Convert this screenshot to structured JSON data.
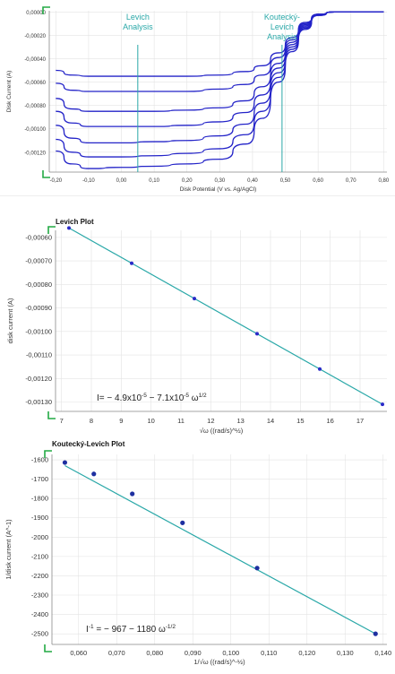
{
  "chart_data": [
    {
      "type": "line",
      "title": "",
      "xlabel": "Disk Potential (V vs. Ag/AgCl)",
      "ylabel": "Disk Current (A)",
      "xlim": [
        -0.22,
        0.81
      ],
      "ylim": [
        -0.00137,
        1e-05
      ],
      "xticks": [
        -0.2,
        -0.1,
        0.0,
        0.1,
        0.2,
        0.3,
        0.4,
        0.5,
        0.6,
        0.7,
        0.8
      ],
      "xtick_labels": [
        "-0,20",
        "-0,10",
        "0,00",
        "0,10",
        "0,20",
        "0,30",
        "0,40",
        "0,50",
        "0,60",
        "0,70",
        "0,80"
      ],
      "yticks": [
        0,
        -0.0002,
        -0.0004,
        -0.0006,
        -0.0008,
        -0.001,
        -0.0012
      ],
      "ytick_labels": [
        "0,00000",
        "-0,00020",
        "-0,00040",
        "-0,00060",
        "-0,00080",
        "-0,00100",
        "-0,00120"
      ],
      "color": "#2323c8",
      "series": [
        {
          "values": [
            [
              -0.2,
              -0.0005
            ],
            [
              -0.15,
              -0.00054
            ],
            [
              -0.1,
              -0.00055
            ],
            [
              0.0,
              -0.00055
            ],
            [
              0.1,
              -0.00055
            ],
            [
              0.2,
              -0.00055
            ],
            [
              0.3,
              -0.00054
            ],
            [
              0.38,
              -0.00051
            ],
            [
              0.43,
              -0.00046
            ],
            [
              0.48,
              -0.00035
            ],
            [
              0.52,
              -0.00022
            ],
            [
              0.56,
              -9e-05
            ],
            [
              0.6,
              -2e-05
            ],
            [
              0.65,
              0.0
            ],
            [
              0.8,
              0.0
            ]
          ]
        },
        {
          "values": [
            [
              -0.2,
              -0.00061
            ],
            [
              -0.15,
              -0.00067
            ],
            [
              -0.1,
              -0.00068
            ],
            [
              0.0,
              -0.00068
            ],
            [
              0.1,
              -0.00068
            ],
            [
              0.2,
              -0.00068
            ],
            [
              0.3,
              -0.00066
            ],
            [
              0.38,
              -0.00062
            ],
            [
              0.43,
              -0.00054
            ],
            [
              0.48,
              -0.00039
            ],
            [
              0.52,
              -0.00024
            ],
            [
              0.56,
              -0.0001
            ],
            [
              0.6,
              -2e-05
            ],
            [
              0.65,
              0.0
            ],
            [
              0.8,
              0.0
            ]
          ]
        },
        {
          "values": [
            [
              -0.2,
              -0.00074
            ],
            [
              -0.15,
              -0.00083
            ],
            [
              -0.1,
              -0.00085
            ],
            [
              0.0,
              -0.00085
            ],
            [
              0.1,
              -0.00085
            ],
            [
              0.2,
              -0.00084
            ],
            [
              0.3,
              -0.00082
            ],
            [
              0.38,
              -0.00076
            ],
            [
              0.43,
              -0.00064
            ],
            [
              0.48,
              -0.00044
            ],
            [
              0.52,
              -0.00026
            ],
            [
              0.56,
              -0.00011
            ],
            [
              0.6,
              -2e-05
            ],
            [
              0.65,
              0.0
            ],
            [
              0.8,
              0.0
            ]
          ]
        },
        {
          "values": [
            [
              -0.2,
              -0.00085
            ],
            [
              -0.15,
              -0.00095
            ],
            [
              -0.1,
              -0.00098
            ],
            [
              0.0,
              -0.00098
            ],
            [
              0.1,
              -0.00098
            ],
            [
              0.2,
              -0.00097
            ],
            [
              0.3,
              -0.00094
            ],
            [
              0.38,
              -0.00086
            ],
            [
              0.43,
              -0.00071
            ],
            [
              0.48,
              -0.00048
            ],
            [
              0.52,
              -0.00028
            ],
            [
              0.56,
              -0.00012
            ],
            [
              0.6,
              -2e-05
            ],
            [
              0.65,
              0.0
            ],
            [
              0.8,
              0.0
            ]
          ]
        },
        {
          "values": [
            [
              -0.2,
              -0.00097
            ],
            [
              -0.15,
              -0.00108
            ],
            [
              -0.1,
              -0.00112
            ],
            [
              0.0,
              -0.00112
            ],
            [
              0.1,
              -0.00111
            ],
            [
              0.2,
              -0.0011
            ],
            [
              0.3,
              -0.00106
            ],
            [
              0.38,
              -0.00096
            ],
            [
              0.43,
              -0.00078
            ],
            [
              0.48,
              -0.00052
            ],
            [
              0.52,
              -0.0003
            ],
            [
              0.56,
              -0.00013
            ],
            [
              0.6,
              -2e-05
            ],
            [
              0.65,
              0.0
            ],
            [
              0.8,
              0.0
            ]
          ]
        },
        {
          "values": [
            [
              -0.2,
              -0.00109
            ],
            [
              -0.15,
              -0.0012
            ],
            [
              -0.1,
              -0.00124
            ],
            [
              0.0,
              -0.00124
            ],
            [
              0.1,
              -0.00123
            ],
            [
              0.2,
              -0.00121
            ],
            [
              0.3,
              -0.00117
            ],
            [
              0.38,
              -0.00105
            ],
            [
              0.43,
              -0.00085
            ],
            [
              0.48,
              -0.00056
            ],
            [
              0.52,
              -0.00032
            ],
            [
              0.56,
              -0.00014
            ],
            [
              0.6,
              -3e-05
            ],
            [
              0.65,
              0.0
            ],
            [
              0.8,
              0.0
            ]
          ]
        },
        {
          "values": [
            [
              -0.2,
              -0.00119
            ],
            [
              -0.15,
              -0.0013
            ],
            [
              -0.1,
              -0.00134
            ],
            [
              0.0,
              -0.00133
            ],
            [
              0.1,
              -0.00132
            ],
            [
              0.2,
              -0.0013
            ],
            [
              0.3,
              -0.00126
            ],
            [
              0.38,
              -0.00113
            ],
            [
              0.43,
              -0.00091
            ],
            [
              0.48,
              -0.0006
            ],
            [
              0.52,
              -0.00034
            ],
            [
              0.56,
              -0.00015
            ],
            [
              0.6,
              -3e-05
            ],
            [
              0.65,
              0.0
            ],
            [
              0.8,
              0.0
            ]
          ]
        }
      ],
      "markers": [
        {
          "x": 0.05,
          "label_lines": [
            "Levich",
            "Analysis"
          ]
        },
        {
          "x": 0.49,
          "label_lines": [
            "Koutecký-",
            "Levich",
            "Analysis"
          ]
        }
      ],
      "marker_color": "#2aa8a8"
    },
    {
      "type": "scatter",
      "title": "Levich Plot",
      "xlabel": "√ω ((rad/s)^½)",
      "ylabel": "disk current (A)",
      "xlim": [
        6.8,
        17.9
      ],
      "ylim": [
        -0.00134,
        -0.00057
      ],
      "xticks": [
        7,
        8,
        9,
        10,
        11,
        12,
        13,
        14,
        15,
        16,
        17
      ],
      "xtick_labels": [
        "7",
        "8",
        "9",
        "10",
        "11",
        "12",
        "13",
        "14",
        "15",
        "16",
        "17"
      ],
      "yticks": [
        -0.0006,
        -0.0007,
        -0.0008,
        -0.0009,
        -0.001,
        -0.0011,
        -0.0012,
        -0.0013
      ],
      "ytick_labels": [
        "-0,00060",
        "-0,00070",
        "-0,00080",
        "-0,00090",
        "-0,00100",
        "-0,00110",
        "-0,00120",
        "-0,00130"
      ],
      "points": [
        [
          7.25,
          -0.00056
        ],
        [
          9.35,
          -0.00071
        ],
        [
          11.45,
          -0.00086
        ],
        [
          13.55,
          -0.00101
        ],
        [
          15.65,
          -0.00116
        ],
        [
          17.75,
          -0.00131
        ]
      ],
      "fit_line": [
        [
          7.25,
          -0.00056
        ],
        [
          17.75,
          -0.00131
        ]
      ],
      "equation": {
        "lhs": "I= − 4.9x10",
        "e1": "-5",
        "mid": " − 7.1x10",
        "e2": "-5",
        "tail": " ω",
        "e3": "1/2"
      },
      "line_color": "#2aa8a8",
      "point_color": "#2a2ac8"
    },
    {
      "type": "scatter",
      "title": "Koutecký-Levich Plot",
      "xlabel": "1/√ω ((rad/s)^-½)",
      "ylabel": "1/disk current (A^-1)",
      "xlim": [
        0.053,
        0.141
      ],
      "ylim": [
        -2555,
        -1572
      ],
      "xticks": [
        0.06,
        0.07,
        0.08,
        0.09,
        0.1,
        0.11,
        0.12,
        0.13,
        0.14
      ],
      "xtick_labels": [
        "0,060",
        "0,070",
        "0,080",
        "0,090",
        "0,100",
        "0,110",
        "0,120",
        "0,130",
        "0,140"
      ],
      "yticks": [
        -1600,
        -1700,
        -1800,
        -1900,
        -2000,
        -2100,
        -2200,
        -2300,
        -2400,
        -2500
      ],
      "ytick_labels": [
        "-1600",
        "-1700",
        "-1800",
        "-1900",
        "-2000",
        "-2100",
        "-2200",
        "-2300",
        "-2400",
        "-2500"
      ],
      "points": [
        [
          0.0564,
          -1614
        ],
        [
          0.064,
          -1673
        ],
        [
          0.0741,
          -1776
        ],
        [
          0.0873,
          -1926
        ],
        [
          0.1069,
          -2160
        ],
        [
          0.138,
          -2500
        ]
      ],
      "fit_line": [
        [
          0.0564,
          -1630
        ],
        [
          0.138,
          -2500
        ]
      ],
      "equation": {
        "lhs": "I",
        "e1": "-1",
        "mid": " = − 967 − 1180  ω",
        "e2": "-1/2"
      },
      "line_color": "#2aa8a8",
      "point_color": "#1e2fa0"
    }
  ]
}
